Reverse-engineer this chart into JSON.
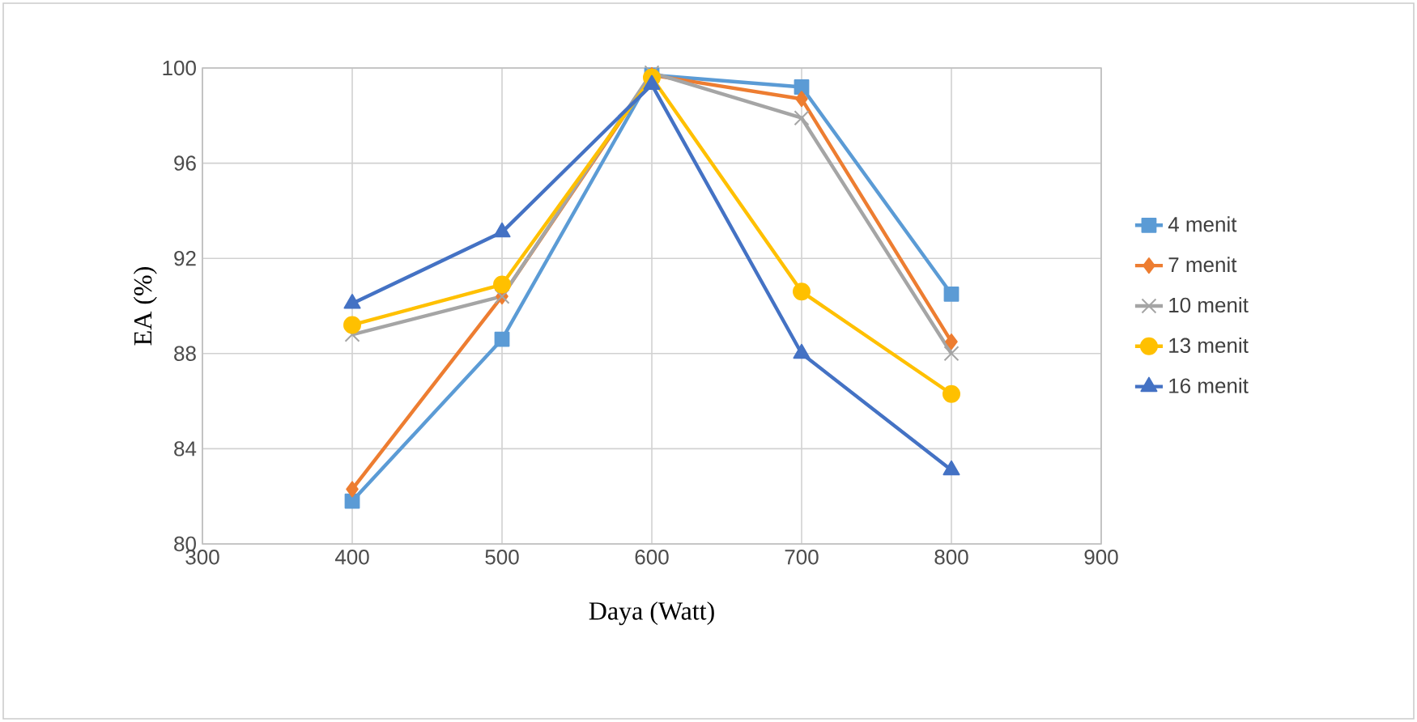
{
  "chart_data": {
    "type": "line",
    "xlabel": "Daya (Watt)",
    "ylabel": "EA (%)",
    "x": [
      400,
      500,
      600,
      700,
      800
    ],
    "xlim": [
      300,
      900
    ],
    "xticks": [
      300,
      400,
      500,
      600,
      700,
      800,
      900
    ],
    "ylim": [
      80,
      100
    ],
    "yticks": [
      80,
      84,
      88,
      92,
      96,
      100
    ],
    "grid": true,
    "legend": "right",
    "series": [
      {
        "name": "4 menit",
        "color": "#5b9bd5",
        "marker": "square",
        "values": [
          81.8,
          88.6,
          99.7,
          99.2,
          90.5
        ]
      },
      {
        "name": "7 menit",
        "color": "#ed7d31",
        "marker": "diamond",
        "values": [
          82.3,
          90.4,
          99.7,
          98.7,
          88.5
        ]
      },
      {
        "name": "10 menit",
        "color": "#a5a5a5",
        "marker": "cross",
        "values": [
          88.8,
          90.4,
          99.8,
          97.9,
          88.0
        ]
      },
      {
        "name": "13 menit",
        "color": "#ffc000",
        "marker": "circle",
        "values": [
          89.2,
          90.9,
          99.6,
          90.6,
          86.3
        ]
      },
      {
        "name": "16 menit",
        "color": "#4472c4",
        "marker": "triangle",
        "values": [
          90.1,
          93.1,
          99.3,
          88.0,
          83.1
        ]
      }
    ]
  }
}
